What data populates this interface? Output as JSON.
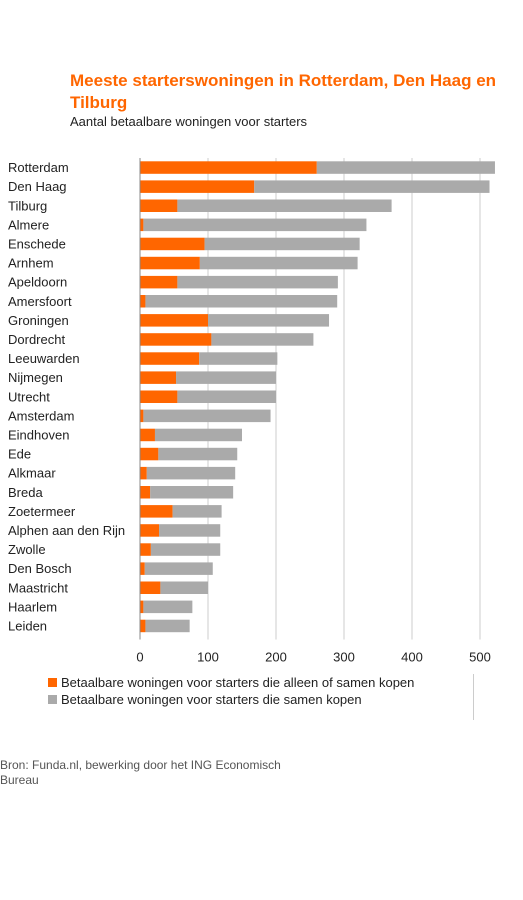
{
  "title": "Meeste starterswoningen in Rotterdam, Den Haag en Tilburg",
  "subtitle": "Aantal betaalbare woningen voor starters",
  "source": "Bron: Funda.nl, bewerking door het ING Economisch Bureau",
  "colors": {
    "series1": "#ff6600",
    "series2": "#aaaaaa",
    "grid": "#cccccc",
    "text": "#222222"
  },
  "chart_data": {
    "type": "bar",
    "orientation": "horizontal",
    "stacked": true,
    "categories": [
      "Rotterdam",
      "Den Haag",
      "Tilburg",
      "Almere",
      "Enschede",
      "Arnhem",
      "Apeldoorn",
      "Amersfoort",
      "Groningen",
      "Dordrecht",
      "Leeuwarden",
      "Nijmegen",
      "Utrecht",
      "Amsterdam",
      "Eindhoven",
      "Ede",
      "Alkmaar",
      "Breda",
      "Zoetermeer",
      "Alphen aan den Rijn",
      "Zwolle",
      "Den Bosch",
      "Maastricht",
      "Haarlem",
      "Leiden"
    ],
    "series": [
      {
        "name": "Betaalbare woningen voor starters die alleen of samen kopen",
        "values": [
          260,
          168,
          55,
          5,
          95,
          88,
          55,
          8,
          100,
          105,
          87,
          53,
          55,
          5,
          22,
          27,
          10,
          15,
          48,
          28,
          16,
          7,
          30,
          5,
          8
        ]
      },
      {
        "name": "Betaalbare woningen voor starters die samen kopen",
        "values": [
          262,
          346,
          315,
          328,
          228,
          232,
          236,
          282,
          178,
          150,
          115,
          147,
          145,
          187,
          128,
          116,
          130,
          122,
          72,
          90,
          102,
          100,
          70,
          72,
          65
        ]
      }
    ],
    "xlim": [
      0,
      520
    ],
    "xticks": [
      0,
      100,
      200,
      300,
      400,
      500
    ],
    "grid": true,
    "legend": "bottom"
  }
}
